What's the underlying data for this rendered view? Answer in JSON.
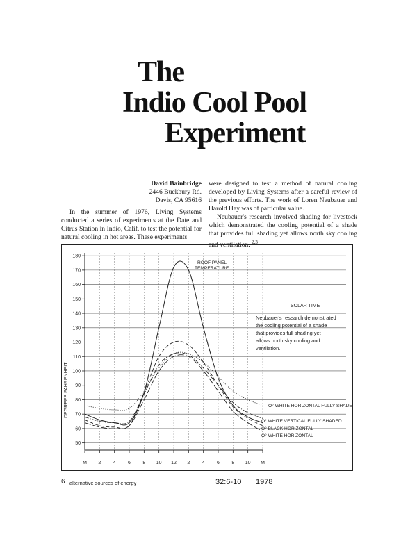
{
  "title": {
    "line1": "The",
    "line2": "Indio Cool Pool",
    "line3": "Experiment"
  },
  "byline": {
    "author": "David Bainbridge",
    "street": "2446 Buckbury Rd.",
    "city": "Davis, CA 95616"
  },
  "body": {
    "left_paragraph": "In the summer of 1976, Living Systems conducted a series of experiments at the Date and Citrus Station in Indio, Calif. to test the potential for natural cooling in hot areas. These experiments",
    "right_paragraph1": "were designed to test a method of natural cooling developed by Living Systems after a careful review of the previous efforts. The work of Loren Neubauer and Harold Hay was of particular value.",
    "right_paragraph2": "Neubauer's research involved shading for livestock which demonstrated the cooling potential of a shade that provides full shading yet allows north sky cooling and ventilation.",
    "right_paragraph2_ref": "2,3"
  },
  "chart_data": {
    "type": "line",
    "ylabel": "DEGREES FAHRENHEIT",
    "ylim": [
      45,
      182
    ],
    "yticks": [
      50,
      60,
      70,
      80,
      90,
      100,
      110,
      120,
      130,
      140,
      150,
      160,
      170,
      180
    ],
    "ytick_labels": [
      "50",
      "60",
      "70",
      "80",
      "90",
      "100",
      "110",
      "120",
      "130",
      "140",
      "150",
      "160",
      "170",
      "180"
    ],
    "x": [
      0,
      2,
      4,
      6,
      8,
      10,
      12,
      14,
      16,
      18,
      20,
      22,
      24
    ],
    "xtick_labels": [
      "M",
      "2",
      "4",
      "6",
      "8",
      "10",
      "12",
      "2",
      "4",
      "6",
      "8",
      "10",
      "M"
    ],
    "annotation_solar_time": "SOLAR TIME",
    "annotation_caption": "Neubauer's research demonstrated the cooling potential of a shade that provides full shading yet allows north sky cooling and ventilation.",
    "series": [
      {
        "name": "ROOF PANEL TEMPERATURE",
        "style": "solid",
        "values": [
          70,
          66,
          64,
          64,
          85,
          130,
          172,
          170,
          130,
          95,
          76,
          68,
          64
        ]
      },
      {
        "name": "O° WHITE HORIZONTAL FULLY SHADED",
        "style": "dotted",
        "values": [
          76,
          74,
          73,
          74,
          86,
          102,
          112,
          112,
          106,
          96,
          86,
          80,
          76
        ]
      },
      {
        "name": "O° WHITE VERTICAL FULLY SHADED",
        "style": "dashdot",
        "values": [
          68,
          65,
          64,
          65,
          84,
          104,
          112,
          111,
          102,
          90,
          78,
          71,
          67
        ]
      },
      {
        "name": "O° BLACK HORIZONTAL",
        "style": "dashed",
        "values": [
          66,
          62,
          61,
          62,
          85,
          110,
          120,
          118,
          106,
          90,
          75,
          67,
          62
        ]
      },
      {
        "name": "O° WHITE HORIZONTAL",
        "style": "longdash",
        "values": [
          64,
          61,
          60,
          62,
          80,
          100,
          110,
          110,
          100,
          86,
          72,
          64,
          58
        ]
      }
    ]
  },
  "footer": {
    "page_number": "6",
    "publication": "alternative sources of energy",
    "issue": "32:6-10",
    "year": "1978"
  }
}
